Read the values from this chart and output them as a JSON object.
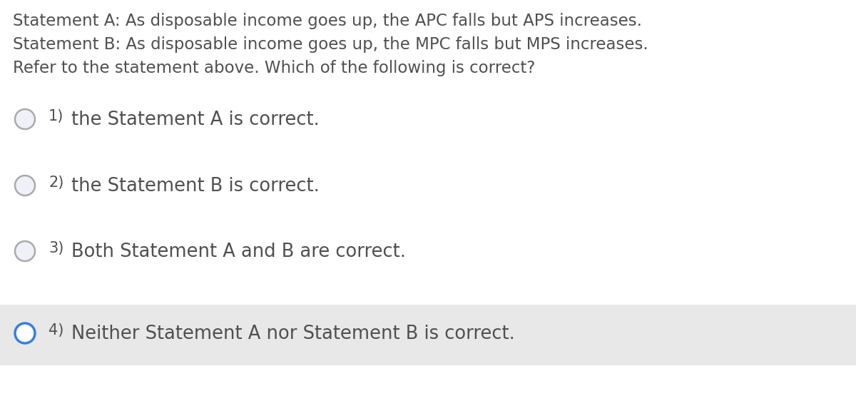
{
  "background_color": "#ffffff",
  "text_color": "#505050",
  "header_lines": [
    "Statement A: As disposable income goes up, the APC falls but APS increases.",
    "Statement B: As disposable income goes up, the MPC falls but MPS increases.",
    "Refer to the statement above. Which of the following is correct?"
  ],
  "options": [
    {
      "number": "1)",
      "text": "the Statement A is correct.",
      "selected": false
    },
    {
      "number": "2)",
      "text": "the Statement B is correct.",
      "selected": false
    },
    {
      "number": "3)",
      "text": "Both Statement A and B are correct.",
      "selected": false
    },
    {
      "number": "4)",
      "text": "Neither Statement A nor Statement B is correct.",
      "selected": true
    }
  ],
  "header_fontsize": 16.5,
  "option_number_fontsize": 15.0,
  "option_text_fontsize": 18.5,
  "unselected_circle_color": "#aaaaaa",
  "unselected_circle_fill": "#f0f0f8",
  "selected_circle_color": "#3a7fd5",
  "selected_bg_color": "#e8e8e8",
  "fig_width": 12.0,
  "fig_height": 5.76,
  "dpi": 100
}
